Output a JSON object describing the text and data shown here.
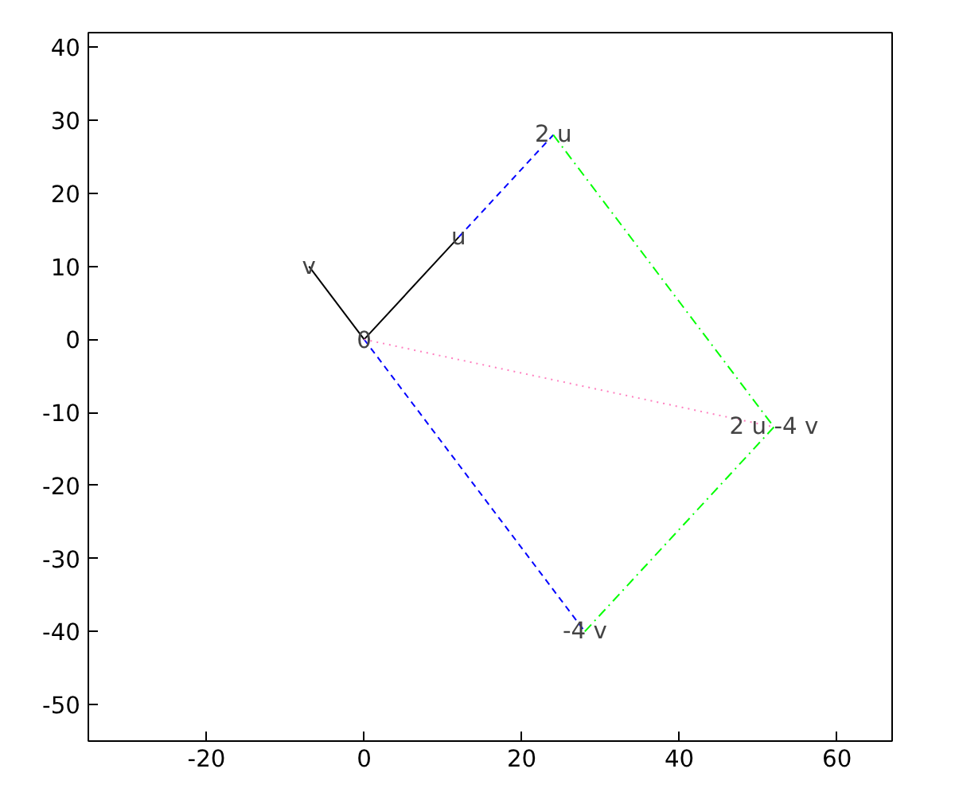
{
  "chart_data": {
    "type": "line",
    "xlim": [
      -35,
      67
    ],
    "ylim": [
      -55,
      42
    ],
    "xticks": [
      -20,
      0,
      20,
      40,
      60
    ],
    "yticks": [
      -50,
      -40,
      -30,
      -20,
      -10,
      0,
      10,
      20,
      30,
      40
    ],
    "grid": false,
    "marker": "none",
    "series": [
      {
        "color": "#000000",
        "line_style": "solid",
        "x": [
          0,
          12,
          null,
          0,
          -7
        ],
        "values": [
          0,
          14,
          null,
          0,
          10
        ]
      },
      {
        "color": "#0000ff",
        "line_style": "dashed",
        "x": [
          12,
          24,
          null,
          0,
          28
        ],
        "values": [
          14,
          28,
          null,
          0,
          -40
        ]
      },
      {
        "color": "#00ff00",
        "line_style": "dashdot",
        "x": [
          24,
          52,
          null,
          28,
          52
        ],
        "values": [
          28,
          -12,
          null,
          -40,
          -12
        ]
      },
      {
        "color": "#ff80c0",
        "line_style": "dotted",
        "x": [
          0,
          52
        ],
        "values": [
          0,
          -12
        ]
      }
    ],
    "annotations": [
      {
        "text": "0",
        "x": 0,
        "y": 0
      },
      {
        "text": "u",
        "x": 12,
        "y": 14
      },
      {
        "text": "v",
        "x": -7,
        "y": 10
      },
      {
        "text": "2 u",
        "x": 24,
        "y": 28
      },
      {
        "text": "-4 v",
        "x": 28,
        "y": -40
      },
      {
        "text": "2 u -4 v",
        "x": 52,
        "y": -12
      }
    ]
  }
}
